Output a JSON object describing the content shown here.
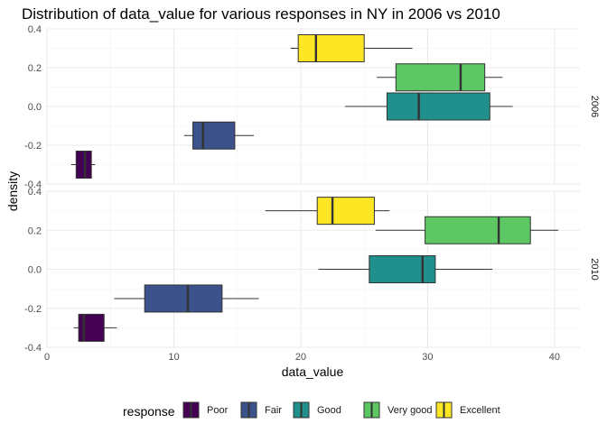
{
  "chart_data": {
    "type": "boxplot",
    "title": "Distribution of data_value for various responses in NY in 2006 vs 2010",
    "xlabel": "data_value",
    "ylabel": "density",
    "xlim": [
      0,
      42
    ],
    "ylim": [
      -0.4,
      0.4
    ],
    "x_ticks": [
      "0",
      "10",
      "20",
      "30",
      "40"
    ],
    "y_ticks": [
      "-0.4",
      "-0.2",
      "0.0",
      "0.2",
      "0.4"
    ],
    "grid": true,
    "legend": {
      "title": "response",
      "position": "bottom",
      "entries": [
        "Poor",
        "Fair",
        "Good",
        "Very good",
        "Excellent"
      ]
    },
    "colors": {
      "Poor": "#440154",
      "Fair": "#3B528B",
      "Good": "#21908C",
      "Very good": "#5DC863",
      "Excellent": "#FDE725"
    },
    "panels": [
      {
        "facet": "2006",
        "boxes": [
          {
            "response": "Poor",
            "whisker_low": 1.9,
            "q1": 2.3,
            "median": 3.0,
            "q3": 3.5,
            "whisker_high": 3.8,
            "y": -0.3
          },
          {
            "response": "Fair",
            "whisker_low": 10.8,
            "q1": 11.5,
            "median": 12.3,
            "q3": 14.8,
            "whisker_high": 16.3,
            "y": -0.15
          },
          {
            "response": "Good",
            "whisker_low": 23.5,
            "q1": 26.8,
            "median": 29.3,
            "q3": 34.9,
            "whisker_high": 36.7,
            "y": 0.0
          },
          {
            "response": "Very good",
            "whisker_low": 26.0,
            "q1": 27.5,
            "median": 32.6,
            "q3": 34.5,
            "whisker_high": 35.9,
            "y": 0.15
          },
          {
            "response": "Excellent",
            "whisker_low": 19.2,
            "q1": 19.8,
            "median": 21.2,
            "q3": 25.0,
            "whisker_high": 28.8,
            "y": 0.3
          }
        ]
      },
      {
        "facet": "2010",
        "boxes": [
          {
            "response": "Poor",
            "whisker_low": 2.1,
            "q1": 2.5,
            "median": 2.9,
            "q3": 4.5,
            "whisker_high": 5.5,
            "y": -0.3
          },
          {
            "response": "Fair",
            "whisker_low": 5.3,
            "q1": 7.7,
            "median": 11.1,
            "q3": 13.8,
            "whisker_high": 16.7,
            "y": -0.15
          },
          {
            "response": "Good",
            "whisker_low": 21.4,
            "q1": 25.4,
            "median": 29.6,
            "q3": 30.6,
            "whisker_high": 35.1,
            "y": 0.0
          },
          {
            "response": "Very good",
            "whisker_low": 25.9,
            "q1": 29.8,
            "median": 35.6,
            "q3": 38.1,
            "whisker_high": 40.3,
            "y": 0.2
          },
          {
            "response": "Excellent",
            "whisker_low": 17.2,
            "q1": 21.3,
            "median": 22.5,
            "q3": 25.8,
            "whisker_high": 27.0,
            "y": 0.3
          }
        ]
      }
    ]
  }
}
